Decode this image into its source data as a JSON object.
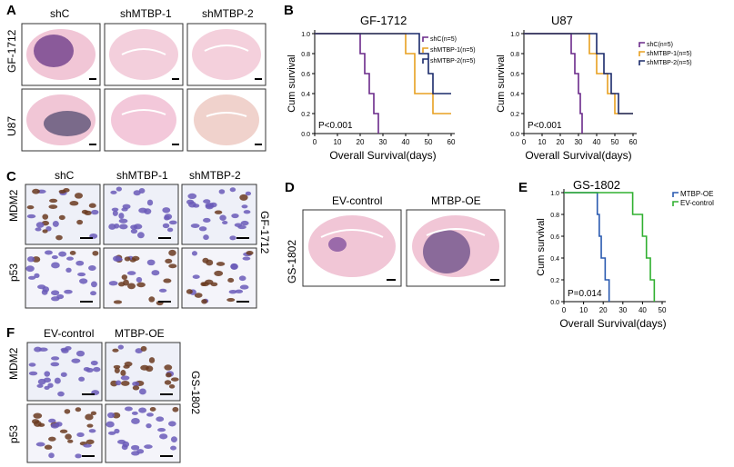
{
  "panels": {
    "A": {
      "letter": "A",
      "columns": [
        "shC",
        "shMTBP-1",
        "shMTBP-2"
      ],
      "rows": [
        "GF-1712",
        "U87"
      ]
    },
    "B": {
      "letter": "B"
    },
    "C": {
      "letter": "C",
      "columns": [
        "shC",
        "shMTBP-1",
        "shMTBP-2"
      ],
      "rows": [
        "MDM2",
        "p53"
      ],
      "side_label": "GF-1712"
    },
    "D": {
      "letter": "D",
      "columns": [
        "EV-control",
        "MTBP-OE"
      ],
      "side_label": "GS-1802"
    },
    "E": {
      "letter": "E"
    },
    "F": {
      "letter": "F",
      "columns": [
        "EV-control",
        "MTBP-OE"
      ],
      "rows": [
        "MDM2",
        "p53"
      ],
      "side_label": "GS-1802"
    }
  },
  "colors": {
    "purple": "#6a2a8a",
    "orange": "#e8a020",
    "navy": "#1a2a6a",
    "blue": "#2a5ab0",
    "green": "#30b030",
    "tissue_pink": "#f1c6d6",
    "tumor_purple": "#8a5a9a"
  },
  "chart_data": [
    {
      "id": "B1",
      "type": "line",
      "title": "GF-1712",
      "xlabel": "Overall Survival(days)",
      "ylabel": "Cum survival",
      "xlim": [
        0,
        60
      ],
      "ylim": [
        0,
        1.0
      ],
      "xticks": [
        "0",
        "10",
        "20",
        "30",
        "40",
        "50",
        "60"
      ],
      "yticks": [
        "0.0",
        "0.2",
        "0.4",
        "0.6",
        "0.8",
        "1.0"
      ],
      "annotation": "P<0.001",
      "series": [
        {
          "name": "shC(n=5)",
          "color": "#6a2a8a",
          "steps": [
            [
              0,
              1.0
            ],
            [
              20,
              0.8
            ],
            [
              22,
              0.6
            ],
            [
              24,
              0.4
            ],
            [
              26,
              0.2
            ],
            [
              28,
              0.0
            ]
          ]
        },
        {
          "name": "shMTBP-1(n=5)",
          "color": "#e8a020",
          "steps": [
            [
              0,
              1.0
            ],
            [
              40,
              0.8
            ],
            [
              44,
              0.4
            ],
            [
              52,
              0.2
            ],
            [
              60,
              0.2
            ]
          ]
        },
        {
          "name": "shMTBP-2(n=5)",
          "color": "#1a2a6a",
          "steps": [
            [
              0,
              1.0
            ],
            [
              46,
              0.8
            ],
            [
              50,
              0.6
            ],
            [
              52,
              0.4
            ],
            [
              60,
              0.4
            ]
          ]
        }
      ]
    },
    {
      "id": "B2",
      "type": "line",
      "title": "U87",
      "xlabel": "Overall Survival(days)",
      "ylabel": "Cum survival",
      "xlim": [
        0,
        60
      ],
      "ylim": [
        0,
        1.0
      ],
      "xticks": [
        "0",
        "10",
        "20",
        "30",
        "40",
        "50",
        "60"
      ],
      "yticks": [
        "0.0",
        "0.2",
        "0.4",
        "0.6",
        "0.8",
        "1.0"
      ],
      "annotation": "P<0.001",
      "series": [
        {
          "name": "shC(n=5)",
          "color": "#6a2a8a",
          "steps": [
            [
              0,
              1.0
            ],
            [
              26,
              0.8
            ],
            [
              28,
              0.6
            ],
            [
              30,
              0.4
            ],
            [
              31,
              0.2
            ],
            [
              32,
              0.0
            ]
          ]
        },
        {
          "name": "shMTBP-1(n=5)",
          "color": "#e8a020",
          "steps": [
            [
              0,
              1.0
            ],
            [
              36,
              0.8
            ],
            [
              40,
              0.6
            ],
            [
              46,
              0.4
            ],
            [
              50,
              0.2
            ],
            [
              60,
              0.2
            ]
          ]
        },
        {
          "name": "shMTBP-2(n=5)",
          "color": "#1a2a6a",
          "steps": [
            [
              0,
              1.0
            ],
            [
              40,
              0.8
            ],
            [
              44,
              0.6
            ],
            [
              48,
              0.4
            ],
            [
              52,
              0.2
            ],
            [
              60,
              0.2
            ]
          ]
        }
      ]
    },
    {
      "id": "E",
      "type": "line",
      "title": "GS-1802",
      "xlabel": "Overall Survival(days)",
      "ylabel": "Cum survival",
      "xlim": [
        0,
        50
      ],
      "ylim": [
        0,
        1.0
      ],
      "xticks": [
        "0",
        "10",
        "20",
        "30",
        "40",
        "50"
      ],
      "yticks": [
        "0.0",
        "0.2",
        "0.4",
        "0.6",
        "0.8",
        "1.0"
      ],
      "annotation": "P=0.014",
      "series": [
        {
          "name": "MTBP-OE",
          "color": "#2a5ab0",
          "steps": [
            [
              0,
              1.0
            ],
            [
              17,
              0.8
            ],
            [
              18,
              0.6
            ],
            [
              19,
              0.4
            ],
            [
              21,
              0.2
            ],
            [
              23,
              0.0
            ]
          ]
        },
        {
          "name": "EV-control",
          "color": "#30b030",
          "steps": [
            [
              0,
              1.0
            ],
            [
              35,
              0.8
            ],
            [
              40,
              0.6
            ],
            [
              42,
              0.4
            ],
            [
              44,
              0.2
            ],
            [
              46,
              0.0
            ]
          ]
        }
      ]
    }
  ]
}
